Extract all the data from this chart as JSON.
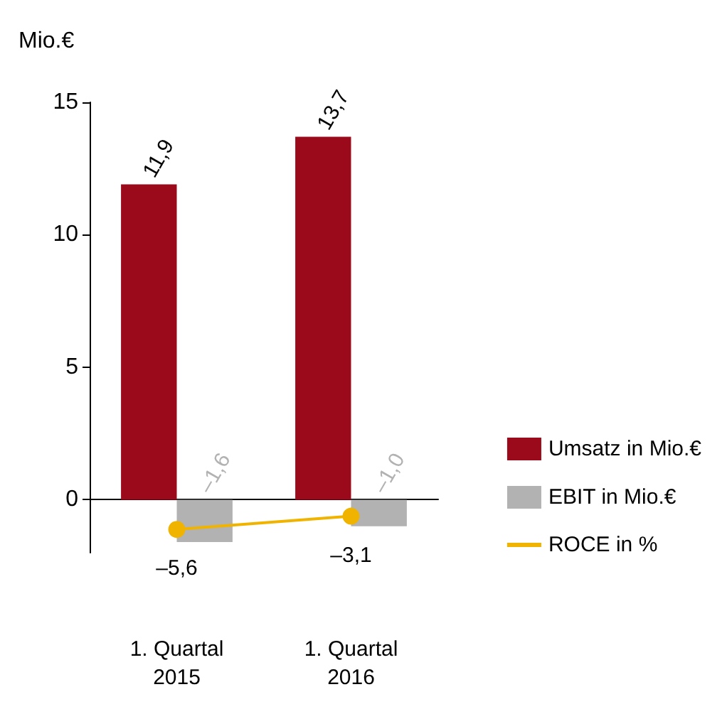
{
  "chart_data": {
    "type": "bar",
    "ylabel": "Mio.€",
    "categories": [
      "1. Quartal 2015",
      "1. Quartal 2016"
    ],
    "series": [
      {
        "name": "Umsatz in Mio.€",
        "color": "#9b0a1a",
        "values": [
          11.9,
          13.7
        ],
        "value_labels": [
          "11,9",
          "13,7"
        ]
      },
      {
        "name": "EBIT in Mio.€",
        "color": "#b2b2b2",
        "values": [
          -1.6,
          -1.0
        ],
        "value_labels": [
          "–1,6",
          "–1,0"
        ]
      },
      {
        "name": "ROCE in %",
        "type": "line",
        "axis": "y2",
        "color": "#f0b400",
        "values": [
          -5.6,
          -3.1
        ],
        "value_labels": [
          "–5,6",
          "–3,1"
        ],
        "marker": "circle"
      }
    ],
    "ylim": [
      -2,
      15
    ],
    "yticks": [
      0,
      5,
      10,
      15
    ],
    "y2lim": [
      -10,
      75
    ],
    "legend": "right"
  }
}
